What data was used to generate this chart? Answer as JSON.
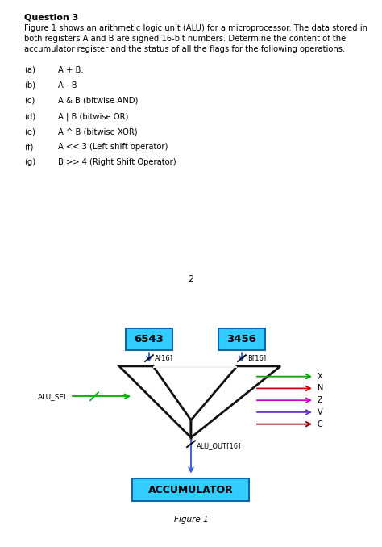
{
  "title": "Question 3",
  "body_line1": "Figure 1 shows an arithmetic logic unit (ALU) for a microprocessor. The data stored in",
  "body_line2": "both registers A and B are signed 16-bit numbers. Determine the content of the",
  "body_line3": "accumulator register and the status of all the flags for the following operations.",
  "items_left": [
    "(a)",
    "(b)",
    "(c)",
    "(d)",
    "(e)",
    "(f)",
    "(g)"
  ],
  "items_right": [
    "A + B.",
    "A - B",
    "A & B (bitwise AND)",
    "A | B (bitwise OR)",
    "A ^ B (bitwise XOR)",
    "A << 3 (Left shift operator)",
    "B >> 4 (Right Shift Operator)"
  ],
  "page_number": "2",
  "fig_label": "Figure 1",
  "reg_a_val": "6543",
  "reg_b_val": "3456",
  "reg_a_label": "A[16]",
  "reg_b_label": "B[16]",
  "alu_sel_label": "ALU_SEL",
  "alu_out_label": "ALU_OUT[16]",
  "accum_label": "ACCUMULATOR",
  "flag_labels": [
    "X",
    "N",
    "Z",
    "V",
    "C"
  ],
  "flag_colors": [
    "#00aa00",
    "#cc0000",
    "#cc00cc",
    "#6633bb",
    "#880000"
  ],
  "box_fill": "#33ccff",
  "box_edge": "#1166aa",
  "alu_edge": "#111111",
  "wire_color": "#3355cc",
  "alu_sel_color": "#00aa00",
  "bg_top": "#ffffff",
  "bg_bottom": "#f0f0f0",
  "sep_color": "#bbbbbb"
}
